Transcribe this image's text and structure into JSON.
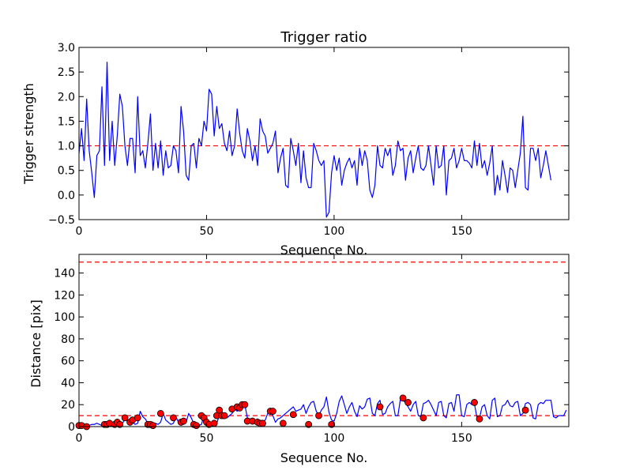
{
  "chart_data": [
    {
      "type": "line",
      "title": "Trigger ratio",
      "xlabel": "Sequence No.",
      "ylabel": "Trigger strength",
      "xlim": [
        0,
        192
      ],
      "ylim": [
        -0.5,
        3.0
      ],
      "xticks": [
        0,
        50,
        100,
        150
      ],
      "xtick_labels": [
        "0",
        "50",
        "100",
        "150"
      ],
      "yticks": [
        -0.5,
        0.0,
        0.5,
        1.0,
        1.5,
        2.0,
        2.5,
        3.0
      ],
      "ytick_labels": [
        "−0.5",
        "0.0",
        "0.5",
        "1.0",
        "1.5",
        "2.0",
        "2.5",
        "3.0"
      ],
      "grid": false,
      "colors": {
        "series": "#0000ff",
        "threshold": "#ff0000"
      },
      "threshold": 1.0,
      "series": [
        {
          "x_start": 0,
          "values": [
            0.85,
            1.35,
            0.7,
            1.95,
            0.9,
            0.45,
            -0.05,
            0.8,
            0.9,
            2.2,
            0.6,
            2.7,
            0.7,
            1.5,
            0.6,
            1.2,
            2.05,
            1.8,
            1.0,
            0.6,
            1.15,
            1.15,
            0.45,
            2.0,
            0.8,
            0.9,
            0.55,
            1.05,
            1.65,
            0.5,
            1.05,
            0.55,
            1.1,
            0.4,
            0.9,
            0.55,
            0.6,
            1.0,
            0.9,
            0.45,
            1.8,
            1.3,
            0.4,
            0.3,
            1.0,
            1.05,
            0.55,
            1.15,
            1.0,
            1.5,
            1.3,
            2.15,
            2.05,
            1.2,
            1.8,
            1.35,
            1.45,
            1.05,
            0.9,
            1.3,
            0.8,
            1.0,
            1.75,
            1.25,
            0.9,
            0.75,
            1.35,
            1.1,
            0.7,
            1.0,
            0.6,
            1.55,
            1.3,
            1.2,
            0.85,
            0.95,
            1.05,
            1.3,
            0.45,
            0.75,
            0.95,
            0.2,
            0.15,
            1.15,
            0.9,
            0.6,
            1.05,
            0.25,
            0.9,
            0.35,
            0.15,
            0.15,
            1.05,
            0.9,
            0.7,
            0.6,
            0.7,
            -0.45,
            -0.35,
            0.45,
            0.8,
            0.5,
            0.75,
            0.2,
            0.5,
            0.65,
            0.75,
            0.55,
            0.7,
            0.2,
            0.95,
            0.6,
            0.9,
            0.7,
            0.1,
            -0.05,
            0.2,
            1.0,
            0.6,
            0.55,
            0.95,
            0.8,
            0.95,
            0.4,
            0.6,
            1.1,
            0.9,
            0.95,
            0.3,
            0.75,
            0.9,
            0.45,
            0.75,
            1.0,
            0.55,
            0.5,
            0.6,
            1.0,
            0.6,
            0.2,
            1.0,
            0.55,
            0.6,
            1.0,
            0.0,
            0.7,
            0.75,
            0.95,
            0.55,
            0.7,
            0.95,
            0.7,
            0.7,
            0.65,
            0.55,
            1.1,
            0.6,
            1.05,
            0.55,
            0.7,
            0.4,
            0.65,
            1.0,
            0.0,
            0.4,
            0.1,
            0.7,
            0.4,
            0.05,
            0.55,
            0.5,
            0.15,
            0.5,
            0.85,
            1.6,
            0.15,
            0.1,
            0.95,
            0.95,
            0.7,
            0.95,
            0.35,
            0.6,
            0.9,
            0.6,
            0.3
          ]
        }
      ]
    },
    {
      "type": "line",
      "title": "",
      "xlabel": "Sequence No.",
      "ylabel": "Distance [pix]",
      "xlim": [
        0,
        192
      ],
      "ylim": [
        0,
        157
      ],
      "xticks": [
        0,
        50,
        100,
        150
      ],
      "xtick_labels": [
        "0",
        "50",
        "100",
        "150"
      ],
      "yticks": [
        0,
        20,
        40,
        60,
        80,
        100,
        120,
        140
      ],
      "ytick_labels": [
        "0",
        "20",
        "40",
        "60",
        "80",
        "100",
        "120",
        "140"
      ],
      "grid": false,
      "colors": {
        "series": "#0000ff",
        "threshold": "#ff0000",
        "marker": "#ff0000"
      },
      "thresholds": [
        10,
        150
      ],
      "series": [
        {
          "x_start": 0,
          "values": [
            2,
            1,
            2,
            1,
            1,
            2,
            2,
            3,
            2,
            1,
            2,
            4,
            2,
            1,
            2,
            3,
            4,
            2,
            8,
            5,
            3,
            4,
            2,
            3,
            14,
            9,
            7,
            3,
            2,
            1,
            3,
            2,
            4,
            12,
            6,
            4,
            2,
            3,
            9,
            4,
            3,
            2,
            4,
            12,
            8,
            3,
            2,
            1,
            2,
            10,
            8,
            3,
            2,
            4,
            3,
            10,
            14,
            9,
            8,
            10,
            12,
            16,
            14,
            16,
            18,
            20,
            8,
            7,
            5,
            6,
            7,
            5,
            3,
            6,
            12,
            14,
            10,
            4,
            7,
            8,
            10,
            12,
            14,
            16,
            18,
            14,
            15,
            16,
            20,
            12,
            18,
            22,
            23,
            14,
            10,
            15,
            18,
            27,
            13,
            6,
            5,
            12,
            23,
            28,
            20,
            12,
            18,
            22,
            14,
            9,
            19,
            16,
            18,
            25,
            26,
            12,
            10,
            21,
            24,
            11,
            12,
            18,
            21,
            23,
            10,
            10,
            25,
            24,
            22,
            18,
            14,
            20,
            23,
            10,
            9,
            21,
            22,
            24,
            20,
            15,
            10,
            22,
            23,
            10,
            8,
            21,
            22,
            14,
            29,
            29,
            10,
            9,
            20,
            22,
            20,
            21,
            8,
            8,
            18,
            20,
            10,
            7,
            24,
            26,
            9,
            10,
            19,
            20,
            24,
            19,
            18,
            22,
            23,
            10,
            12,
            21,
            22,
            20,
            8,
            7,
            20,
            22,
            21,
            24,
            24,
            24,
            9,
            8,
            10,
            10,
            10,
            15
          ]
        }
      ],
      "markers": [
        [
          0,
          1
        ],
        [
          1,
          1
        ],
        [
          3,
          0
        ],
        [
          10,
          2
        ],
        [
          11,
          2
        ],
        [
          12,
          3
        ],
        [
          14,
          2
        ],
        [
          15,
          4
        ],
        [
          16,
          2
        ],
        [
          18,
          8
        ],
        [
          20,
          4
        ],
        [
          21,
          6
        ],
        [
          23,
          8
        ],
        [
          27,
          2
        ],
        [
          28,
          2
        ],
        [
          29,
          1
        ],
        [
          32,
          12
        ],
        [
          37,
          8
        ],
        [
          40,
          4
        ],
        [
          41,
          5
        ],
        [
          45,
          2
        ],
        [
          46,
          1
        ],
        [
          48,
          10
        ],
        [
          49,
          8
        ],
        [
          50,
          4
        ],
        [
          51,
          2
        ],
        [
          53,
          3
        ],
        [
          54,
          10
        ],
        [
          55,
          15
        ],
        [
          56,
          10
        ],
        [
          57,
          10
        ],
        [
          60,
          16
        ],
        [
          62,
          18
        ],
        [
          63,
          17
        ],
        [
          64,
          20
        ],
        [
          65,
          20
        ],
        [
          66,
          5
        ],
        [
          68,
          5
        ],
        [
          70,
          4
        ],
        [
          71,
          3
        ],
        [
          72,
          3
        ],
        [
          75,
          14
        ],
        [
          76,
          14
        ],
        [
          80,
          3
        ],
        [
          84,
          11
        ],
        [
          90,
          2
        ],
        [
          94,
          10
        ],
        [
          99,
          2
        ],
        [
          118,
          18
        ],
        [
          127,
          26
        ],
        [
          129,
          22
        ],
        [
          135,
          8
        ],
        [
          155,
          22
        ],
        [
          157,
          7
        ],
        [
          175,
          15
        ]
      ]
    }
  ]
}
